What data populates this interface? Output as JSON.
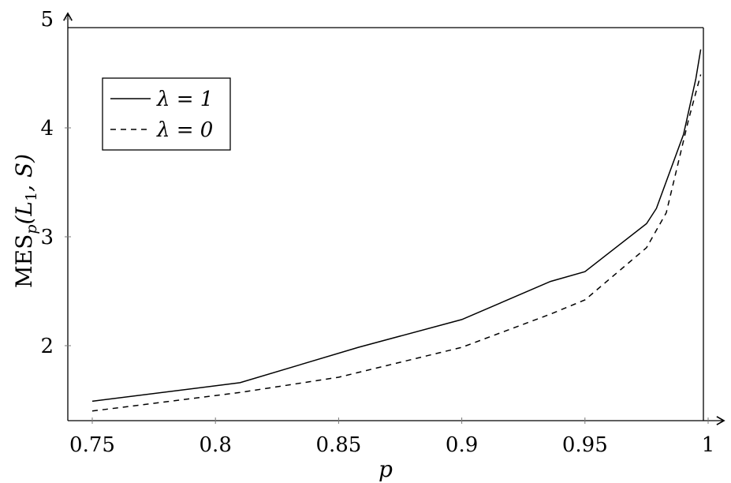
{
  "chart_data": {
    "type": "line",
    "title": "",
    "xlabel": "p",
    "ylabel_main": "MES",
    "ylabel_sub": "p",
    "ylabel_rest": "(L",
    "ylabel_sub2": "1",
    "ylabel_tail": ", S)",
    "xlim": [
      0.74,
      0.998
    ],
    "ylim": [
      1.31,
      4.92
    ],
    "xticks": [
      "0.75",
      "0.8",
      "0.85",
      "0.9",
      "0.95",
      "1"
    ],
    "xtick_values": [
      0.75,
      0.8,
      0.85,
      0.9,
      0.95,
      1.0
    ],
    "yticks": [
      "2",
      "3",
      "4",
      "5"
    ],
    "ytick_values": [
      2,
      3,
      4,
      5
    ],
    "grid": false,
    "legend_position": "top-left",
    "series": [
      {
        "name": "λ = 1",
        "style": "solid",
        "color": "#000000",
        "x": [
          0.75,
          0.81,
          0.858,
          0.9,
          0.936,
          0.95,
          0.975,
          0.979,
          0.99,
          0.995,
          0.997
        ],
        "y": [
          1.49,
          1.66,
          1.985,
          2.24,
          2.59,
          2.68,
          3.12,
          3.26,
          3.94,
          4.45,
          4.72
        ]
      },
      {
        "name": "λ = 0",
        "style": "dashed",
        "color": "#000000",
        "x": [
          0.75,
          0.81,
          0.85,
          0.9,
          0.936,
          0.95,
          0.975,
          0.983,
          0.992,
          0.997
        ],
        "y": [
          1.4,
          1.57,
          1.71,
          1.985,
          2.29,
          2.42,
          2.9,
          3.22,
          4.07,
          4.49
        ]
      }
    ]
  }
}
